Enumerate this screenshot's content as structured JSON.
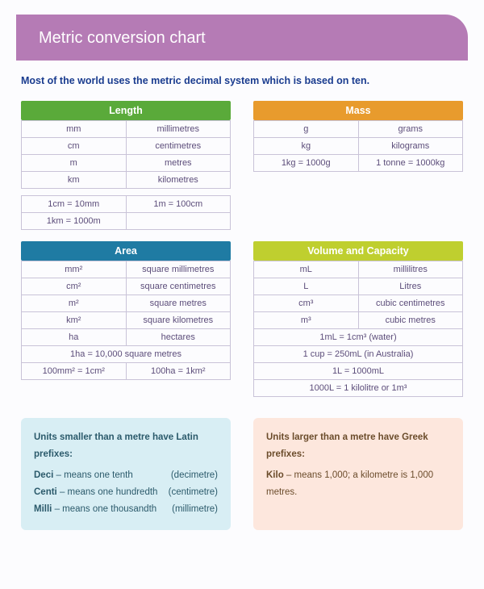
{
  "title": "Metric conversion chart",
  "subtitle": "Most of the world uses the metric decimal system which is based on ten.",
  "colors": {
    "banner": "#b57bb5",
    "length": "#5aaa3a",
    "mass": "#e89b2d",
    "area": "#1f7ba3",
    "volume": "#bfcf2f",
    "latin_box": "#d8eef4",
    "greek_box": "#fde7dd",
    "cell_text": "#5c4d7a",
    "border": "#c9c3d8",
    "subtitle_text": "#1a3c8f"
  },
  "length": {
    "header": "Length",
    "rows": [
      [
        "mm",
        "millimetres"
      ],
      [
        "cm",
        "centimetres"
      ],
      [
        "m",
        "metres"
      ],
      [
        "km",
        "kilometres"
      ]
    ],
    "extra": [
      [
        "1cm = 10mm",
        "1m = 100cm"
      ],
      [
        "1km = 1000m",
        ""
      ]
    ]
  },
  "mass": {
    "header": "Mass",
    "rows": [
      [
        "g",
        "grams"
      ],
      [
        "kg",
        "kilograms"
      ],
      [
        "1kg = 1000g",
        "1 tonne = 1000kg"
      ]
    ]
  },
  "area": {
    "header": "Area",
    "rows": [
      [
        "mm²",
        "square millimetres"
      ],
      [
        "cm²",
        "square centimetres"
      ],
      [
        "m²",
        "square metres"
      ],
      [
        "km²",
        "square kilometres"
      ],
      [
        "ha",
        "hectares"
      ]
    ],
    "extra_full": "1ha = 10,000 square metres",
    "extra_pair": [
      "100mm² = 1cm²",
      "100ha = 1km²"
    ]
  },
  "volume": {
    "header": "Volume and Capacity",
    "rows": [
      [
        "mL",
        "millilitres"
      ],
      [
        "L",
        "Litres"
      ],
      [
        "cm³",
        "cubic centimetres"
      ],
      [
        "m³",
        "cubic metres"
      ]
    ],
    "extras": [
      "1mL = 1cm³ (water)",
      "1 cup = 250mL  (in Australia)",
      "1L = 1000mL",
      "1000L = 1 kilolitre or 1m³"
    ]
  },
  "latin": {
    "heading": "Units smaller than a metre have Latin prefixes:",
    "items": [
      {
        "prefix": "Deci",
        "meaning": " – means one tenth",
        "example": "(decimetre)"
      },
      {
        "prefix": "Centi",
        "meaning": " – means one hundredth",
        "example": "(centimetre)"
      },
      {
        "prefix": "Milli",
        "meaning": " – means one thousandth",
        "example": "(millimetre)"
      }
    ]
  },
  "greek": {
    "heading": "Units larger than a metre have Greek prefixes:",
    "items": [
      {
        "prefix": "Kilo",
        "meaning": " – means 1,000; a kilometre is 1,000 metres."
      }
    ]
  }
}
